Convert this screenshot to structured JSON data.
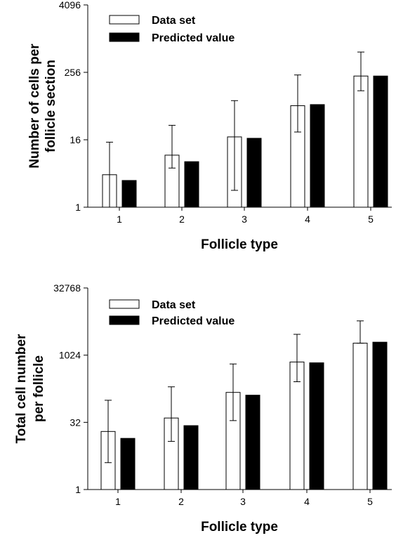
{
  "chart_data": [
    {
      "type": "bar",
      "title": "",
      "xlabel": "Follicle type",
      "ylabel": [
        "Number of cells per",
        "follicle section"
      ],
      "y_scale": "log2",
      "ylim": [
        1,
        4096
      ],
      "y_ticks": [
        1,
        16,
        256,
        4096
      ],
      "y_tick_labels": [
        "1",
        "16",
        "256",
        "4096"
      ],
      "categories": [
        "1",
        "2",
        "3",
        "4",
        "5"
      ],
      "series": [
        {
          "name": "Data set",
          "fill": "#ffffff",
          "values": [
            3.8,
            8.5,
            18,
            65,
            220
          ],
          "err_low": [
            1,
            5,
            2,
            22,
            120
          ],
          "err_high": [
            14.5,
            29,
            80,
            230,
            590
          ]
        },
        {
          "name": "Predicted value",
          "fill": "#000000",
          "values": [
            3,
            6.5,
            17,
            68,
            220
          ]
        }
      ],
      "legend": "top-left",
      "grid": false
    },
    {
      "type": "bar",
      "title": "",
      "xlabel": "Follicle type",
      "ylabel": [
        "Total cell number",
        "per follicle"
      ],
      "y_scale": "log2",
      "ylim": [
        1,
        32768
      ],
      "y_ticks": [
        1,
        32,
        1024,
        32768
      ],
      "y_tick_labels": [
        "1",
        "32",
        "1024",
        "32768"
      ],
      "categories": [
        "1",
        "2",
        "3",
        "4",
        "5"
      ],
      "series": [
        {
          "name": "Data set",
          "fill": "#ffffff",
          "values": [
            20,
            40,
            150,
            720,
            1900
          ],
          "err_low": [
            4,
            12,
            35,
            260,
            1900
          ],
          "err_high": [
            100,
            200,
            650,
            3000,
            6000
          ]
        },
        {
          "name": "Predicted value",
          "fill": "#000000",
          "values": [
            14,
            27,
            130,
            690,
            2000
          ]
        }
      ],
      "legend": "top-left",
      "grid": false
    }
  ]
}
